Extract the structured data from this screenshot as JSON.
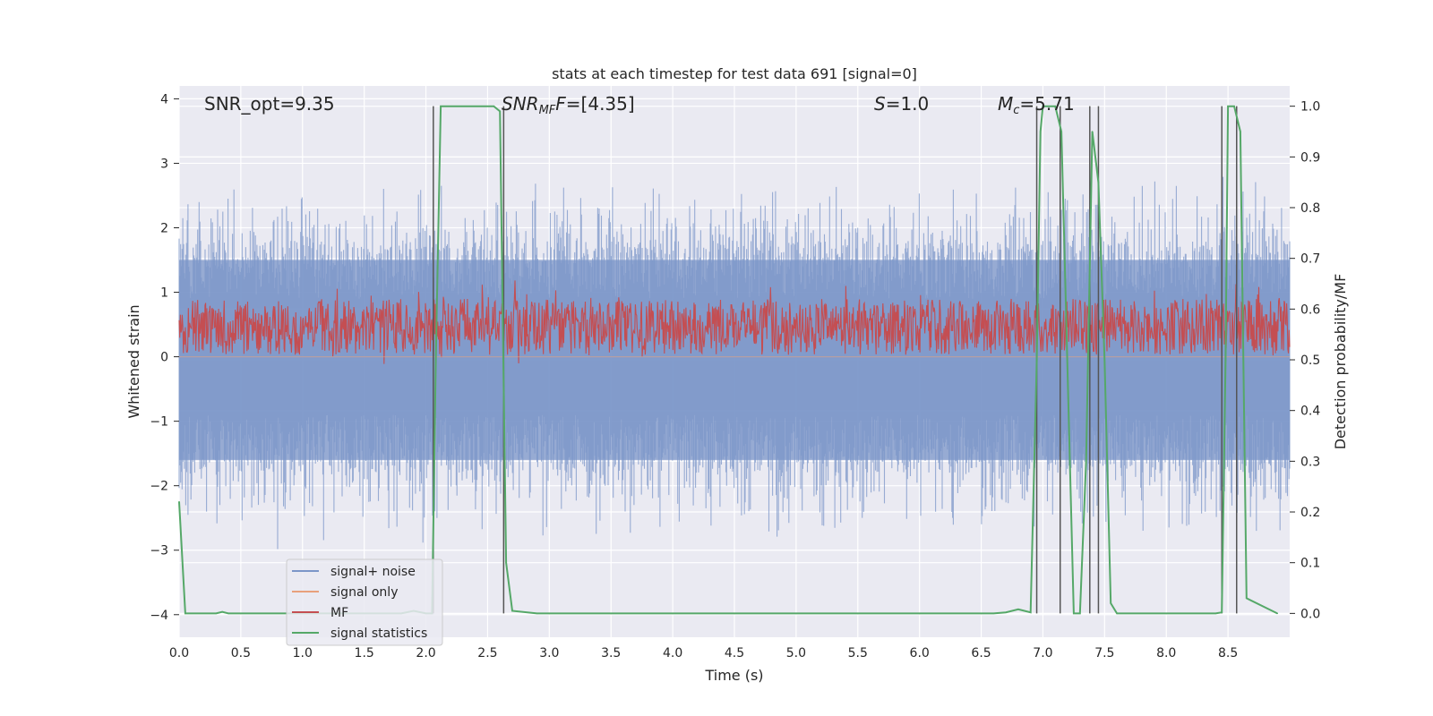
{
  "chart_data": {
    "type": "line",
    "title": "stats at each timestep for test data 691 [signal=0]",
    "xlabel": "Time (s)",
    "ylabel": "Whitened strain",
    "y2label": "Detection probability/MF",
    "xlim": [
      0.0,
      9.0
    ],
    "ylim": [
      -4.35,
      4.2
    ],
    "y2lim": [
      -0.047,
      1.04
    ],
    "x_ticks": [
      "0.0",
      "0.5",
      "1.0",
      "1.5",
      "2.0",
      "2.5",
      "3.0",
      "3.5",
      "4.0",
      "4.5",
      "5.0",
      "5.5",
      "6.0",
      "6.5",
      "7.0",
      "7.5",
      "8.0",
      "8.5"
    ],
    "y_ticks": [
      "−4",
      "−3",
      "−2",
      "−1",
      "0",
      "1",
      "2",
      "3",
      "4"
    ],
    "y2_ticks": [
      "0.0",
      "0.1",
      "0.2",
      "0.3",
      "0.4",
      "0.5",
      "0.6",
      "0.7",
      "0.8",
      "0.9",
      "1.0"
    ],
    "annotations": {
      "snr_opt": "SNR_opt=9.35",
      "snr_mf_main": "SNR",
      "snr_mf_sub": "MF",
      "snr_mf_rest": "=[4.35]",
      "s_main": "S",
      "s_rest": "=1.0",
      "mc_main": "M",
      "mc_sub": "c",
      "mc_rest": "=5.71"
    },
    "legend": {
      "position": "lower-left",
      "entries": [
        {
          "label": "signal+ noise",
          "color": "#7b96c8"
        },
        {
          "label": "signal only",
          "color": "#e8a07c"
        },
        {
          "label": "MF",
          "color": "#c44e52"
        },
        {
          "label": "signal statistics",
          "color": "#55a868"
        }
      ]
    },
    "series": [
      {
        "name": "signal+ noise",
        "color": "#7b96c8",
        "kind": "noise",
        "amplitude_ylim": [
          -3.6,
          3.3
        ],
        "typical_band": [
          -1.6,
          1.5
        ]
      },
      {
        "name": "signal only",
        "color": "#e8a07c",
        "kind": "flat",
        "values_x": [
          0.0,
          9.0
        ],
        "values_y": [
          0.0,
          0.0
        ]
      },
      {
        "name": "MF",
        "color": "#c44e52",
        "kind": "noise",
        "axis": "y2",
        "band": [
          0.51,
          0.62
        ]
      },
      {
        "name": "signal statistics",
        "color": "#55a868",
        "axis": "y2",
        "x": [
          0.0,
          0.05,
          0.3,
          0.35,
          0.4,
          1.8,
          1.9,
          2.0,
          2.05,
          2.08,
          2.12,
          2.55,
          2.6,
          2.65,
          2.7,
          2.9,
          6.6,
          6.7,
          6.8,
          6.9,
          6.95,
          6.98,
          7.0,
          7.1,
          7.15,
          7.25,
          7.3,
          7.35,
          7.4,
          7.45,
          7.5,
          7.55,
          7.6,
          8.4,
          8.45,
          8.48,
          8.5,
          8.55,
          8.6,
          8.65,
          8.9
        ],
        "y": [
          0.22,
          0.0,
          0.0,
          0.003,
          0.0,
          0.0,
          0.005,
          0.0,
          0.0,
          0.5,
          1.0,
          1.0,
          0.99,
          0.1,
          0.005,
          0.0,
          0.0,
          0.002,
          0.008,
          0.002,
          0.5,
          0.95,
          1.0,
          1.0,
          0.95,
          0.0,
          0.0,
          0.3,
          0.95,
          0.85,
          0.5,
          0.02,
          0.0,
          0.0,
          0.002,
          0.5,
          1.0,
          1.0,
          0.95,
          0.03,
          0.0
        ]
      }
    ],
    "vertical_lines_x": [
      2.06,
      2.63,
      6.95,
      7.14,
      7.38,
      7.45,
      8.45,
      8.57
    ],
    "grid": true
  }
}
